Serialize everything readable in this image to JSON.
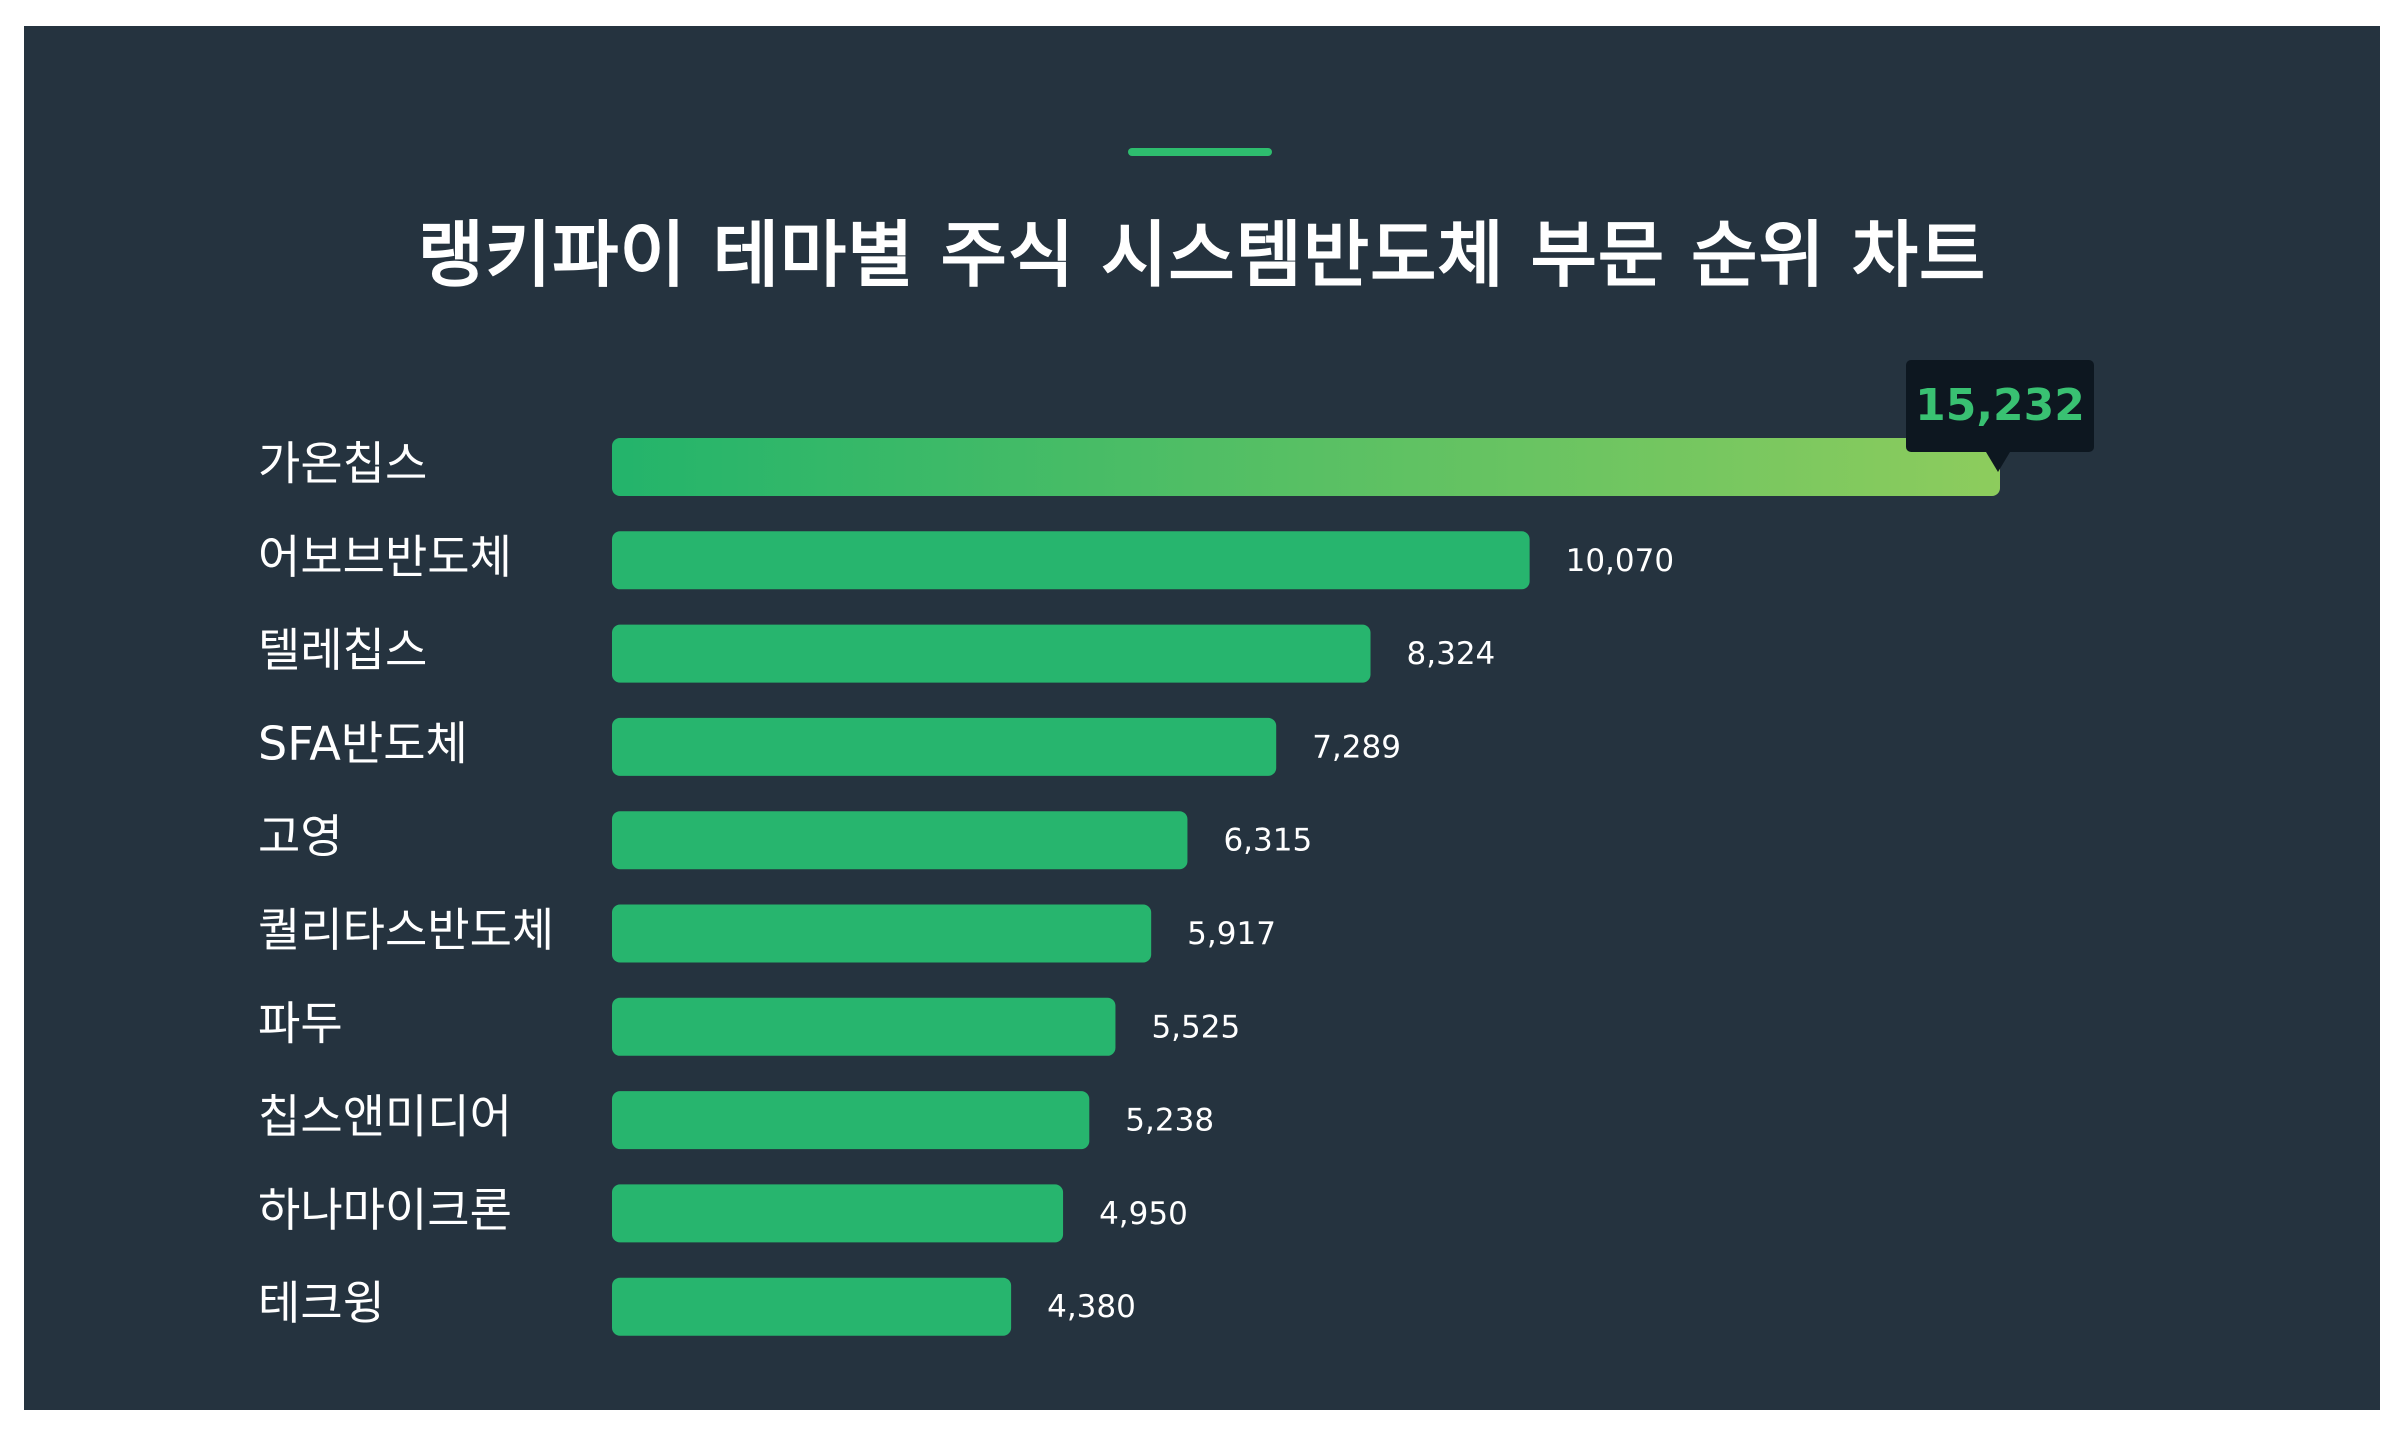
{
  "colors": {
    "background": "#25333f",
    "accent": "#2ebd6e",
    "bar": "#27b56e",
    "bar_gradient_start": "#23b46b",
    "bar_gradient_end": "#8dcc5d",
    "tooltip_bg": "#0d1720",
    "tooltip_text": "#39c172"
  },
  "chart_data": {
    "type": "bar",
    "orientation": "horizontal",
    "title": "랭키파이 테마별 주식 시스템반도체 부문 순위 차트",
    "categories": [
      "가온칩스",
      "어보브반도체",
      "텔레칩스",
      "SFA반도체",
      "고영",
      "퀄리타스반도체",
      "파두",
      "칩스앤미디어",
      "하나마이크론",
      "테크윙"
    ],
    "values": [
      15232,
      10070,
      8324,
      7289,
      6315,
      5917,
      5525,
      5238,
      4950,
      4380
    ],
    "value_labels": [
      "15,232",
      "10,070",
      "8,324",
      "7,289",
      "6,315",
      "5,917",
      "5,525",
      "5,238",
      "4,950",
      "4,380"
    ],
    "xlim": [
      0,
      15232
    ],
    "grid": false,
    "highlight_index": 0
  }
}
